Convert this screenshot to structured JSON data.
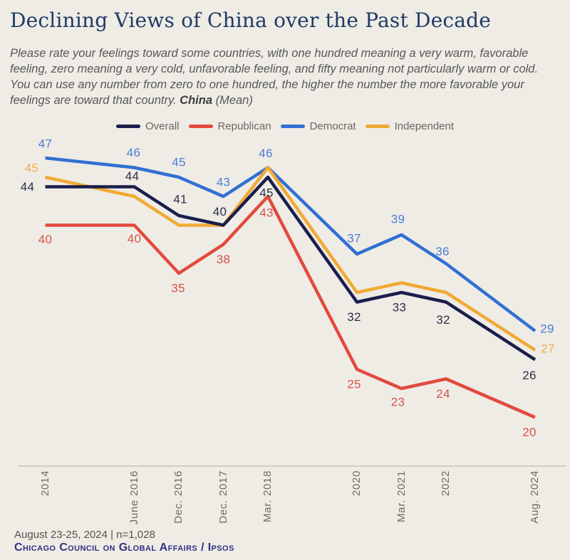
{
  "header": {
    "title": "Declining Views of China over the Past Decade",
    "subtitle_main": "Please rate your feelings toward some countries, with one hundred meaning a very warm, favorable feeling, zero meaning a very cold, unfavorable feeling, and fifty meaning not particularly warm or cold. You can use any number from zero to one hundred, the higher the number the more favorable your feelings are toward that country. ",
    "subtitle_emphasis": "China",
    "subtitle_tail": " (Mean)"
  },
  "theme": {
    "background": "#EFECE6",
    "title_color": "#1E3C64",
    "subtitle_color": "#57575A",
    "axis_line_color": "#D1CDC6",
    "tick_label_color": "#6E6A64",
    "legend_label_color": "#6B6762",
    "footer_note_color": "#55524D",
    "footer_source_color": "#2F3284"
  },
  "chart_data": {
    "type": "line",
    "categories": [
      "2014",
      "June 2016",
      "Dec. 2016",
      "Dec. 2017",
      "Mar. 2018",
      "2020",
      "Mar. 2021",
      "2022",
      "Aug. 2024"
    ],
    "x_units": [
      0,
      2,
      3,
      4,
      5,
      7,
      8,
      9,
      11
    ],
    "ylim": [
      15,
      50
    ],
    "grid": false,
    "legend_position": "top-center",
    "series": [
      {
        "name": "Overall",
        "color": "#1A1E4C",
        "label_color": "#2B2D45",
        "values": [
          44,
          44,
          41,
          40,
          45,
          32,
          33,
          32,
          26
        ],
        "labeled": [
          true,
          true,
          true,
          true,
          true,
          true,
          true,
          true,
          true
        ]
      },
      {
        "name": "Republican",
        "color": "#E24A3E",
        "label_color": "#D6534A",
        "values": [
          40,
          40,
          35,
          38,
          43,
          25,
          23,
          24,
          20
        ],
        "labeled": [
          true,
          true,
          true,
          true,
          true,
          true,
          true,
          true,
          true
        ]
      },
      {
        "name": "Democrat",
        "color": "#3170D2",
        "label_color": "#4A7DD3",
        "values": [
          47,
          46,
          45,
          43,
          46,
          37,
          39,
          36,
          29
        ],
        "labeled": [
          true,
          true,
          true,
          true,
          true,
          true,
          true,
          true,
          true
        ]
      },
      {
        "name": "Independent",
        "color": "#F1AA33",
        "label_color": "#F0AE4E",
        "values": [
          45,
          43,
          40,
          40,
          46,
          33,
          34,
          33,
          27
        ],
        "labeled": [
          true,
          false,
          false,
          false,
          false,
          false,
          false,
          false,
          true
        ]
      }
    ]
  },
  "footer": {
    "survey_info": "August 23-25, 2024 | n=1,028",
    "source": "Chicago Council on Global Affairs / Ipsos"
  }
}
